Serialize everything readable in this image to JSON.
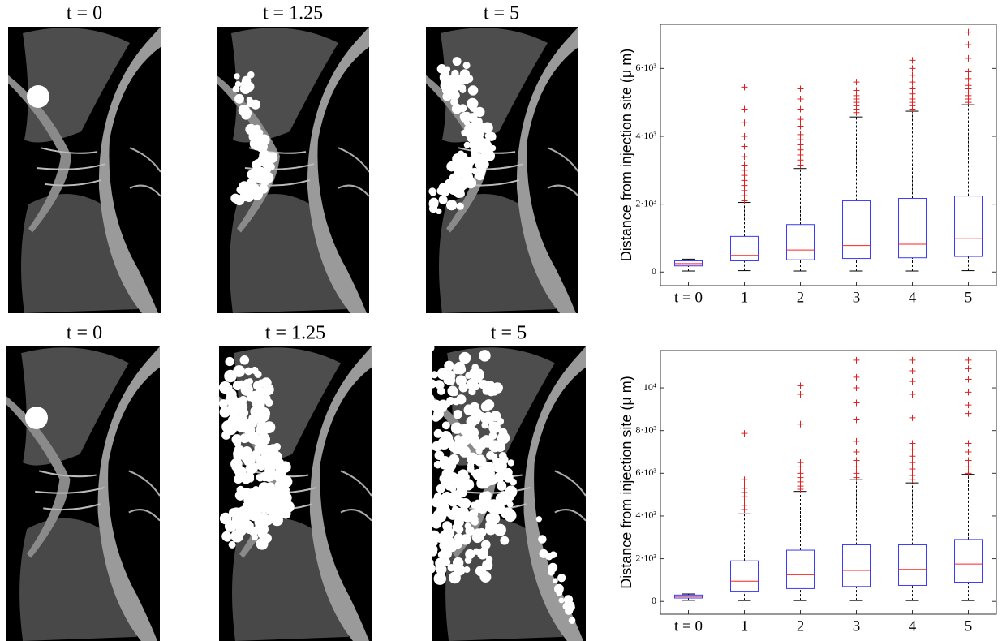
{
  "panels": [
    {
      "title": "t = 0"
    },
    {
      "title": "t = 1.25"
    },
    {
      "title": "t = 5"
    },
    {
      "title": "t = 0"
    },
    {
      "title": "t = 1.25"
    },
    {
      "title": "t = 5"
    }
  ],
  "chart_data": [
    {
      "type": "box",
      "y_label": "Distance from injection site (μ m)",
      "categories": [
        "t = 0",
        "1",
        "2",
        "3",
        "4",
        "5"
      ],
      "box_color": "#3a3aff",
      "median_color": "#ff2020",
      "outlier_color": "#e02020",
      "ylim": [
        -400,
        7300
      ],
      "yticks": [
        0,
        {
          "value": 2000,
          "label": "2·10³"
        },
        {
          "value": 4000,
          "label": "4·10³"
        },
        {
          "value": 6000,
          "label": "6·10³"
        }
      ],
      "boxes": [
        {
          "whisker_low": 30,
          "q1": 180,
          "median": 250,
          "q3": 330,
          "whisker_high": 380,
          "outliers": []
        },
        {
          "whisker_low": 40,
          "q1": 330,
          "median": 490,
          "q3": 1050,
          "whisker_high": 2050,
          "outliers": [
            2100,
            2250,
            2400,
            2550,
            2700,
            2850,
            3000,
            3150,
            3400,
            3700,
            4000,
            4400,
            4800,
            5450
          ]
        },
        {
          "whisker_low": 30,
          "q1": 360,
          "median": 650,
          "q3": 1400,
          "whisker_high": 3050,
          "outliers": [
            3150,
            3300,
            3450,
            3600,
            3750,
            3900,
            4050,
            4300,
            4500,
            4800,
            5100,
            5400
          ]
        },
        {
          "whisker_low": 30,
          "q1": 400,
          "median": 780,
          "q3": 2100,
          "whisker_high": 4570,
          "outliers": [
            4700,
            4800,
            4900,
            5000,
            5100,
            5200,
            5350,
            5600
          ]
        },
        {
          "whisker_low": 30,
          "q1": 420,
          "median": 820,
          "q3": 2170,
          "whisker_high": 4740,
          "outliers": [
            4800,
            4900,
            5000,
            5100,
            5250,
            5400,
            5600,
            5800,
            6000,
            6240
          ]
        },
        {
          "whisker_low": 40,
          "q1": 460,
          "median": 980,
          "q3": 2240,
          "whisker_high": 4930,
          "outliers": [
            5000,
            5100,
            5200,
            5300,
            5400,
            5500,
            5700,
            5900,
            6300,
            6700,
            7070
          ]
        }
      ]
    },
    {
      "type": "box",
      "y_label": "Distance from injection site (μ m)",
      "categories": [
        "t = 0",
        "1",
        "2",
        "3",
        "4",
        "5"
      ],
      "box_color": "#3a3aff",
      "median_color": "#ff2020",
      "outlier_color": "#e02020",
      "ylim": [
        -600,
        11750
      ],
      "yticks": [
        0,
        {
          "value": 2000,
          "label": "2·10³"
        },
        {
          "value": 4000,
          "label": "4·10³"
        },
        {
          "value": 6000,
          "label": "6·10³"
        },
        {
          "value": 8000,
          "label": "8·10³"
        },
        {
          "value": 10000,
          "label": "10⁴"
        }
      ],
      "boxes": [
        {
          "whisker_low": 50,
          "q1": 160,
          "median": 230,
          "q3": 300,
          "whisker_high": 350,
          "outliers": []
        },
        {
          "whisker_low": 40,
          "q1": 480,
          "median": 950,
          "q3": 1900,
          "whisker_high": 4100,
          "outliers": [
            4300,
            4500,
            4700,
            4900,
            5100,
            5300,
            5500,
            5700,
            7870
          ]
        },
        {
          "whisker_low": 40,
          "q1": 600,
          "median": 1250,
          "q3": 2400,
          "whisker_high": 5150,
          "outliers": [
            5250,
            5400,
            5600,
            5800,
            6000,
            6300,
            6500,
            8300,
            9700,
            10100
          ]
        },
        {
          "whisker_low": 40,
          "q1": 700,
          "median": 1450,
          "q3": 2650,
          "whisker_high": 5700,
          "outliers": [
            5800,
            6000,
            6300,
            6600,
            7000,
            7500,
            8500,
            9300,
            10000,
            10500,
            11300
          ]
        },
        {
          "whisker_low": 40,
          "q1": 750,
          "median": 1500,
          "q3": 2650,
          "whisker_high": 5550,
          "outliers": [
            5700,
            5900,
            6200,
            6500,
            6800,
            7100,
            7400,
            8600,
            9700,
            10300,
            10800,
            11300
          ]
        },
        {
          "whisker_low": 40,
          "q1": 900,
          "median": 1750,
          "q3": 2900,
          "whisker_high": 5950,
          "outliers": [
            6000,
            6300,
            6600,
            7000,
            7400,
            8800,
            9200,
            9800,
            10400,
            10900,
            11300
          ]
        }
      ]
    }
  ]
}
